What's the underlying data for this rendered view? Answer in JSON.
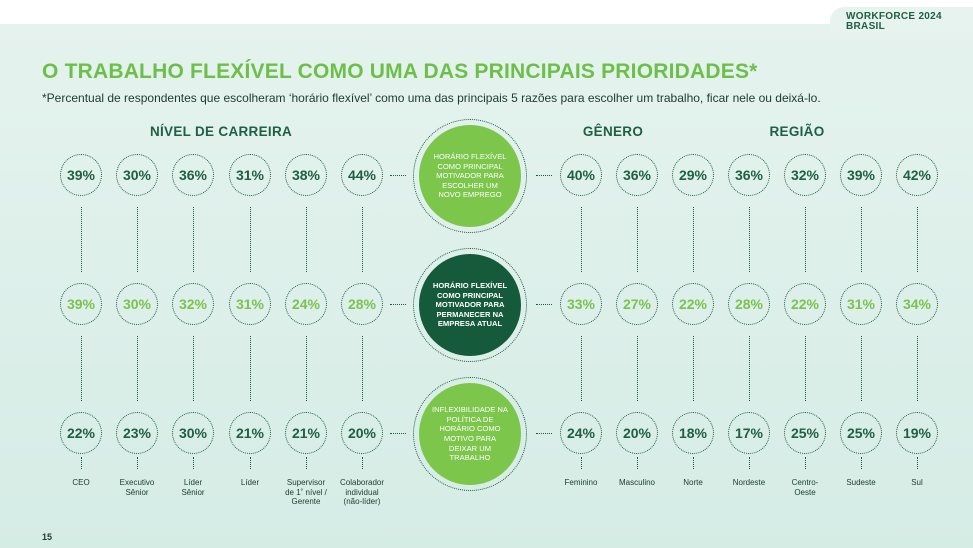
{
  "header": {
    "brand_line1": "WORKFORCE 2024",
    "brand_line2": "BRASIL"
  },
  "title": "O TRABALHO FLEXÍVEL COMO UMA DAS PRINCIPAIS PRIORIDADES*",
  "subtitle": "*Percentual de respondentes que escolheram ‘horário flexível’ como uma das principais 5 razões para escolher um trabalho, ficar nele ou deixá-lo.",
  "groups": {
    "career": "NÍVEL DE CARREIRA",
    "gender": "GÊNERO",
    "region": "REGIÃO"
  },
  "center_motives": [
    "HORÁRIO FLEXÍVEL COMO PRINCIPAL MOTIVADOR PARA ESCOLHER UM NOVO EMPREGO",
    "HORÁRIO FLEXÍVEL COMO PRINCIPAL MOTIVADOR PARA PERMANECER NA EMPRESA ATUAL",
    "INFLEXIBILIDADE NA POLÍTICA DE HORÁRIO COMO MOTIVO PARA DEIXAR UM TRABALHO"
  ],
  "left_columns": [
    {
      "label": "CEO",
      "values": [
        "39%",
        "39%",
        "22%"
      ]
    },
    {
      "label": "Executivo\nSênior",
      "values": [
        "30%",
        "30%",
        "23%"
      ]
    },
    {
      "label": "Líder\nSênior",
      "values": [
        "36%",
        "32%",
        "30%"
      ]
    },
    {
      "label": "Líder",
      "values": [
        "31%",
        "31%",
        "21%"
      ]
    },
    {
      "label": "Supervisor\nde 1˚ nível /\nGerente",
      "values": [
        "38%",
        "24%",
        "21%"
      ]
    },
    {
      "label": "Colaborador\nindividual\n(não-líder)",
      "values": [
        "44%",
        "28%",
        "20%"
      ]
    }
  ],
  "right_columns": [
    {
      "label": "Feminino",
      "values": [
        "40%",
        "33%",
        "24%"
      ]
    },
    {
      "label": "Masculino",
      "values": [
        "36%",
        "27%",
        "20%"
      ]
    },
    {
      "label": "Norte",
      "values": [
        "29%",
        "22%",
        "18%"
      ]
    },
    {
      "label": "Nordeste",
      "values": [
        "36%",
        "28%",
        "17%"
      ]
    },
    {
      "label": "Centro-\nOeste",
      "values": [
        "32%",
        "22%",
        "25%"
      ]
    },
    {
      "label": "Sudeste",
      "values": [
        "39%",
        "31%",
        "25%"
      ]
    },
    {
      "label": "Sul",
      "values": [
        "42%",
        "34%",
        "19%"
      ]
    }
  ],
  "colors": {
    "dark_green": "#1f5f43",
    "light_green": "#7bc24f",
    "circle_green": "#7cc64b",
    "circle_dark": "#155a3a"
  },
  "page_number": "15"
}
